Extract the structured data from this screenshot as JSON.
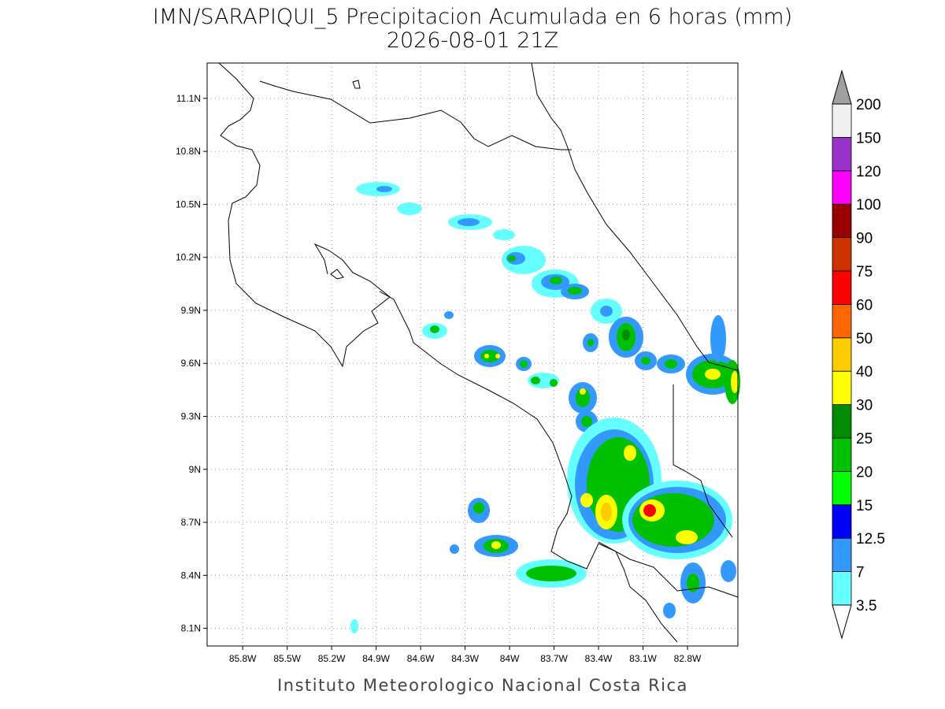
{
  "title": "IMN/SARAPIQUI_5 Precipitacion Acumulada en 6 horas (mm)",
  "subtitle": "2026-08-01 21Z",
  "footer": "Instituto Meteorologico Nacional Costa Rica",
  "map": {
    "lonlim": [
      -86.04,
      -82.46
    ],
    "latlim": [
      8.0,
      11.3
    ],
    "lon_ticks": [
      {
        "value": -85.8,
        "label": "85.8W"
      },
      {
        "value": -85.5,
        "label": "85.5W"
      },
      {
        "value": -85.2,
        "label": "85.2W"
      },
      {
        "value": -84.9,
        "label": "84.9W"
      },
      {
        "value": -84.6,
        "label": "84.6W"
      },
      {
        "value": -84.3,
        "label": "84.3W"
      },
      {
        "value": -84.0,
        "label": "84W"
      },
      {
        "value": -83.7,
        "label": "83.7W"
      },
      {
        "value": -83.4,
        "label": "83.4W"
      },
      {
        "value": -83.1,
        "label": "83.1W"
      },
      {
        "value": -82.8,
        "label": "82.8W"
      }
    ],
    "lat_ticks": [
      {
        "value": 8.1,
        "label": "8.1N"
      },
      {
        "value": 8.4,
        "label": "8.4N"
      },
      {
        "value": 8.7,
        "label": "8.7N"
      },
      {
        "value": 9.0,
        "label": "9N"
      },
      {
        "value": 9.3,
        "label": "9.3N"
      },
      {
        "value": 9.6,
        "label": "9.6N"
      },
      {
        "value": 9.9,
        "label": "9.9N"
      },
      {
        "value": 10.2,
        "label": "10.2N"
      },
      {
        "value": 10.5,
        "label": "10.5N"
      },
      {
        "value": 10.8,
        "label": "10.8N"
      },
      {
        "value": 11.1,
        "label": "11.1N"
      }
    ],
    "grid": true
  },
  "colorbar": {
    "labels": [
      3.5,
      7,
      12.5,
      15,
      20,
      25,
      30,
      40,
      50,
      60,
      75,
      90,
      100,
      120,
      150,
      200
    ],
    "colors": [
      "#66ffff",
      "#3399ff",
      "#0000ff",
      "#00ff00",
      "#00c000",
      "#008c00",
      "#ffff00",
      "#ffcc00",
      "#ff6600",
      "#ff0000",
      "#cc3300",
      "#990000",
      "#ff00ff",
      "#9933cc",
      "#f0f0f0"
    ],
    "below_color": "#ffffff",
    "above_color": "#a0a0a0"
  }
}
